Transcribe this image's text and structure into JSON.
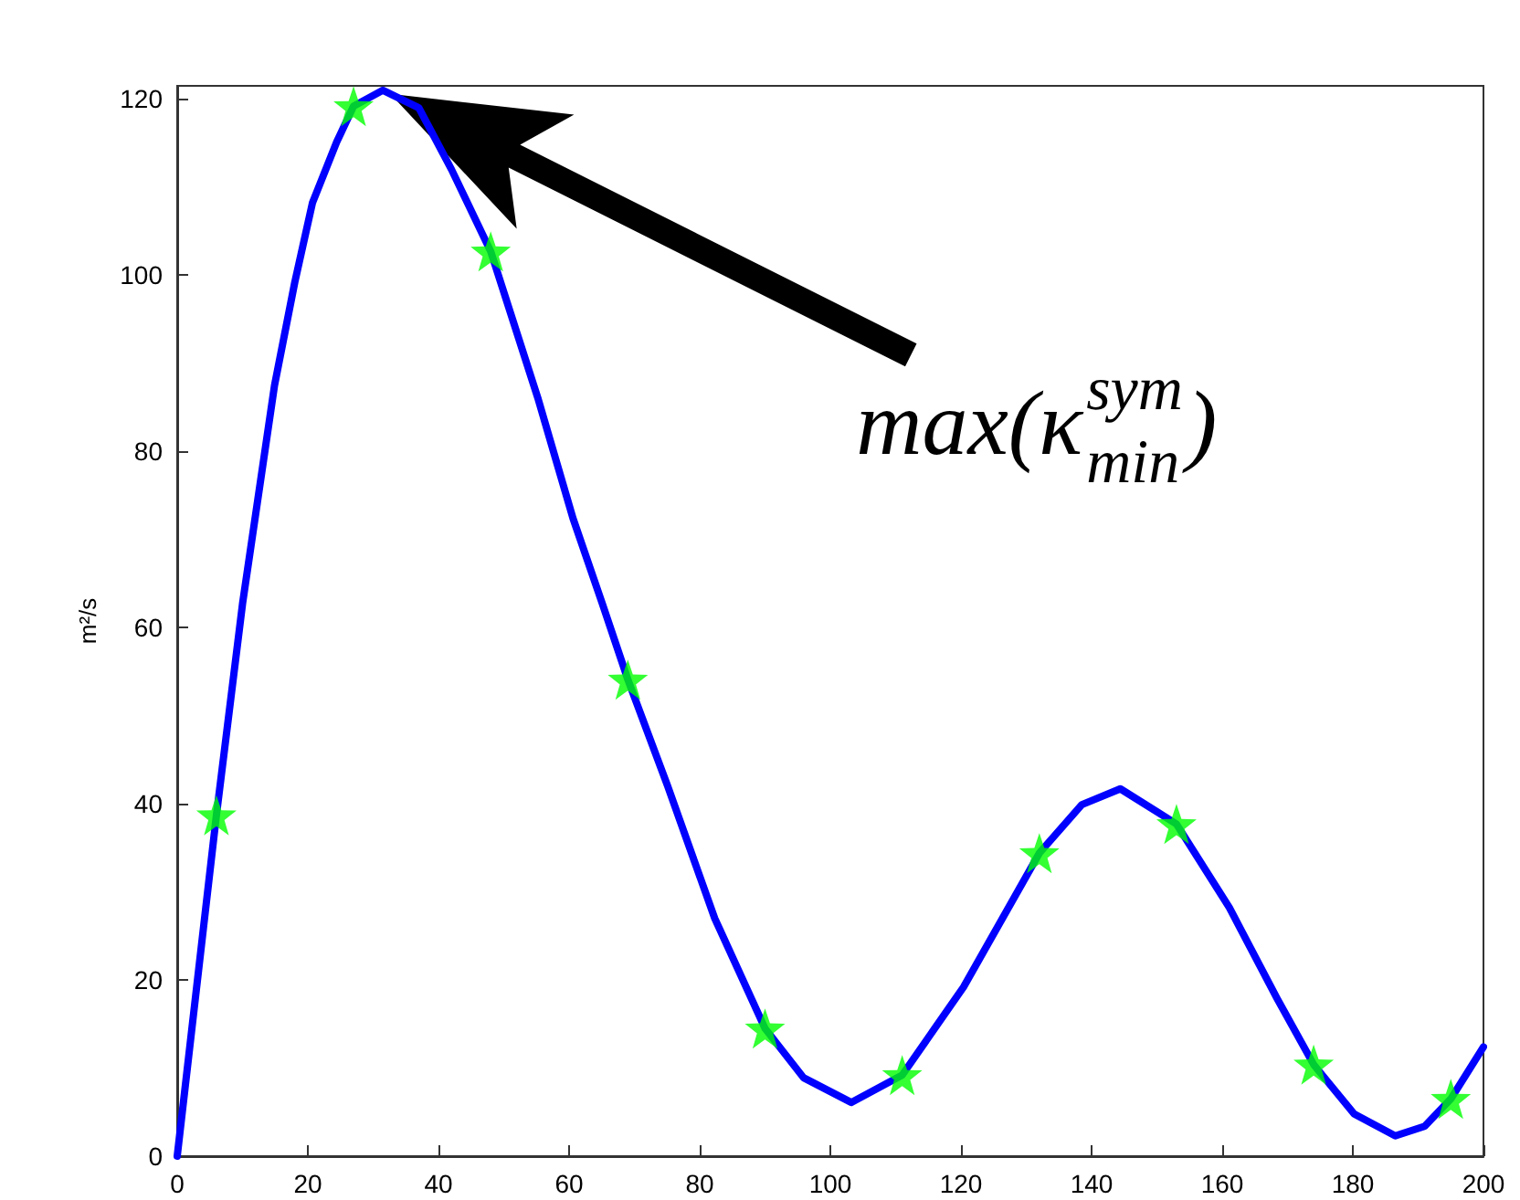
{
  "chart_data": {
    "type": "line",
    "ylabel": "m²/s",
    "xlim": [
      0,
      200
    ],
    "xticks": [
      0,
      20,
      40,
      60,
      80,
      100,
      120,
      140,
      160,
      180,
      200
    ],
    "ylim": [
      0,
      121.5
    ],
    "yticks": [
      0,
      20,
      40,
      60,
      80,
      100,
      120
    ],
    "grid": false,
    "series": [
      {
        "type": "line",
        "color": "#0000ff",
        "marker": "none",
        "line_style": "solid",
        "x": [
          0,
          6,
          10,
          14.9,
          18,
          20.7,
          24.4,
          27,
          31.5,
          37,
          42,
          48,
          55.2,
          60.6,
          65.1,
          69,
          75.1,
          82.3,
          90,
          95.9,
          103.2,
          111,
          120.4,
          132,
          138.5,
          144.4,
          153,
          161.1,
          168.4,
          174,
          180.2,
          186.5,
          191,
          195,
          200
        ],
        "values": [
          0,
          38.7,
          62.7,
          87.5,
          99.2,
          108.2,
          115.1,
          119.2,
          121,
          119,
          112,
          102.7,
          86.1,
          72.4,
          62.7,
          54.1,
          42,
          27,
          14.5,
          8.9,
          6.1,
          9.2,
          19.2,
          34.4,
          39.9,
          41.7,
          37.7,
          28.2,
          17.9,
          10.4,
          4.8,
          2.3,
          3.4,
          6.5,
          12.4
        ]
      },
      {
        "type": "scatter",
        "color": "#00ff00",
        "marker": "star",
        "x": [
          6,
          27,
          48,
          69,
          90,
          111,
          132,
          153,
          174,
          195
        ],
        "values": [
          38.7,
          119.2,
          102.7,
          54.1,
          14.5,
          9.2,
          34.4,
          37.7,
          10.4,
          6.5
        ]
      }
    ],
    "annotations": [
      "max(κ$^{sym}$$_{min}$)"
    ]
  }
}
